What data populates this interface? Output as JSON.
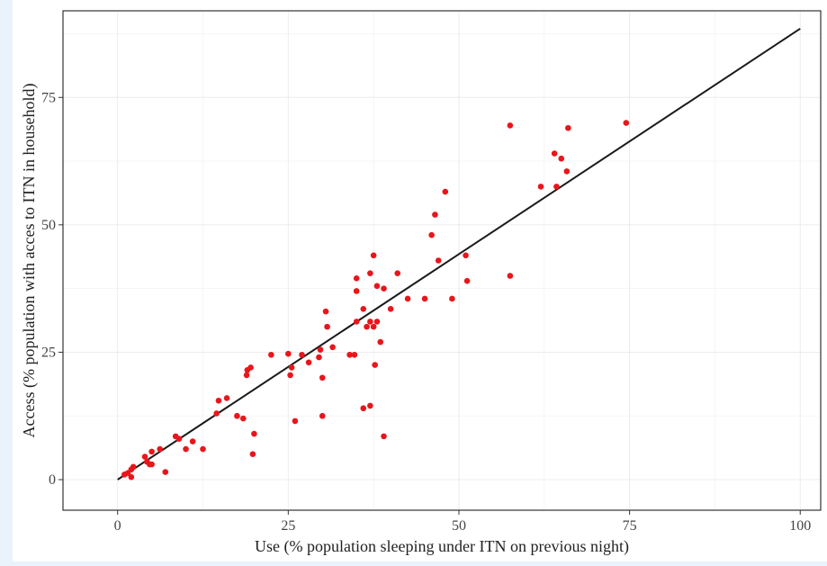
{
  "chart_data": {
    "type": "scatter",
    "title": "",
    "xlabel": "Use (% population sleeping under ITN on previous night)",
    "ylabel": "Access (% population with acces to ITN in household)",
    "xlim": [
      -8,
      103
    ],
    "ylim": [
      -6,
      92
    ],
    "xticks": [
      0,
      25,
      50,
      75,
      100
    ],
    "yticks": [
      0,
      25,
      50,
      75
    ],
    "xtick_labels": [
      "0",
      "25",
      "50",
      "75",
      "100"
    ],
    "ytick_labels": [
      "0",
      "25",
      "50",
      "75"
    ],
    "grid": true,
    "colors": {
      "points": "#e8161b",
      "line": "#1a1a1a",
      "grid": "#ececec",
      "panel_border": "#333333"
    },
    "series": [
      {
        "kind": "points",
        "x": [
          1,
          1.5,
          2,
          2.3,
          2,
          4,
          4.3,
          4.7,
          5,
          5,
          6.2,
          7,
          8.5,
          9,
          10,
          11,
          12.5,
          14.5,
          14.8,
          16,
          17.5,
          18.4,
          18.9,
          19,
          19.5,
          19.8,
          20,
          22.5,
          25,
          25.3,
          25.5,
          26,
          27,
          28,
          29.5,
          29.7,
          30,
          30,
          30.5,
          30.7,
          31.5,
          34,
          34.7,
          35,
          35,
          35,
          36,
          36,
          36.5,
          37,
          37,
          37,
          37.5,
          37.5,
          37.7,
          38,
          38,
          38.5,
          39,
          39,
          40,
          41,
          42.5,
          45,
          46,
          46.5,
          47,
          48,
          49,
          51,
          51.2,
          57.5,
          57.5,
          62,
          64,
          64.3,
          65,
          65.8,
          66,
          74.5
        ],
        "y": [
          1,
          1.3,
          0.5,
          2.5,
          2,
          4.5,
          3.5,
          3,
          5.5,
          3,
          6,
          1.5,
          8.5,
          8,
          6,
          7.5,
          6,
          13,
          15.5,
          16,
          12.5,
          12,
          20.5,
          21.5,
          22,
          5,
          9,
          24.5,
          24.7,
          20.5,
          22,
          11.5,
          24.5,
          23,
          24,
          25.5,
          12.5,
          20,
          33,
          30,
          26,
          24.5,
          24.5,
          37,
          39.5,
          31,
          33.5,
          14,
          30,
          14.5,
          31,
          40.5,
          30,
          44,
          22.5,
          31,
          38,
          27,
          37.5,
          8.5,
          33.5,
          40.5,
          35.5,
          35.5,
          48,
          52,
          43,
          56.5,
          35.5,
          44,
          39,
          69.5,
          40,
          57.5,
          64,
          57.5,
          63,
          60.5,
          69,
          70
        ]
      },
      {
        "kind": "line",
        "x": [
          0,
          100
        ],
        "y": [
          0,
          88.5
        ]
      }
    ]
  }
}
